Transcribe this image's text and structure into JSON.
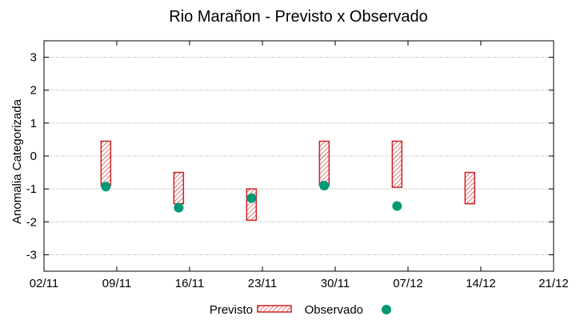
{
  "chart_data": {
    "type": "floating-bar-with-scatter",
    "title": "Rio Marañon - Previsto x Observado",
    "xlabel": "",
    "ylabel": "Anomalia Categorizada",
    "ylim": [
      -3.5,
      3.5
    ],
    "y_ticks": [
      -3,
      -2,
      -1,
      0,
      1,
      2,
      3
    ],
    "xlim": [
      0,
      14
    ],
    "x_ticks": [
      {
        "x": 0,
        "label": "02/11"
      },
      {
        "x": 2,
        "label": "09/11"
      },
      {
        "x": 4,
        "label": "16/11"
      },
      {
        "x": 6,
        "label": "23/11"
      },
      {
        "x": 8,
        "label": "30/11"
      },
      {
        "x": 10,
        "label": "07/12"
      },
      {
        "x": 12,
        "label": "14/12"
      },
      {
        "x": 14,
        "label": "21/12"
      }
    ],
    "grid": "horizontal-dotted",
    "series": [
      {
        "name": "Previsto",
        "kind": "range-bar",
        "color": "#cc2222",
        "points": [
          {
            "x": 1.7,
            "low": -0.9,
            "high": 0.45
          },
          {
            "x": 3.7,
            "low": -1.45,
            "high": -0.5
          },
          {
            "x": 5.7,
            "low": -1.95,
            "high": -1.0
          },
          {
            "x": 7.7,
            "low": -0.9,
            "high": 0.45
          },
          {
            "x": 9.7,
            "low": -0.95,
            "high": 0.45
          },
          {
            "x": 11.7,
            "low": -1.45,
            "high": -0.5
          }
        ]
      },
      {
        "name": "Observado",
        "kind": "scatter",
        "color": "#009977",
        "points": [
          {
            "x": 1.7,
            "y": -0.93
          },
          {
            "x": 3.7,
            "y": -1.57
          },
          {
            "x": 5.7,
            "y": -1.28
          },
          {
            "x": 7.7,
            "y": -0.9
          },
          {
            "x": 9.7,
            "y": -1.52
          }
        ]
      }
    ],
    "legend": {
      "placement": "bottom-center",
      "entries": [
        "Previsto",
        "Observado"
      ]
    }
  }
}
